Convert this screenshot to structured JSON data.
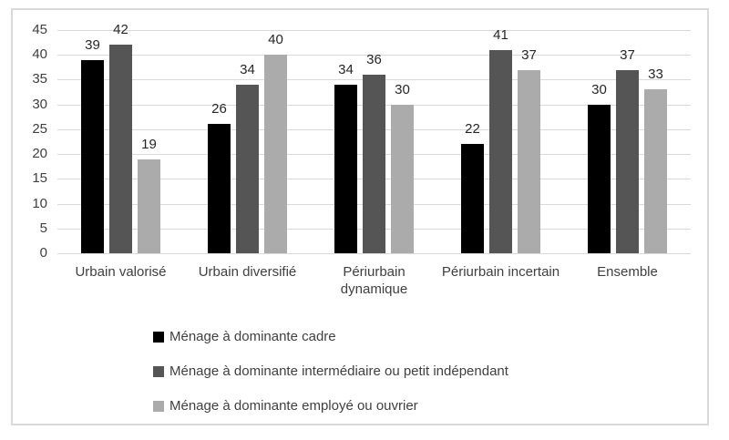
{
  "chart_data": {
    "type": "bar",
    "title": "",
    "xlabel": "",
    "ylabel": "",
    "categories": [
      "Urbain valorisé",
      "Urbain diversifié",
      "Périurbain dynamique",
      "Périurbain incertain",
      "Ensemble"
    ],
    "series": [
      {
        "name": "Ménage à dominante cadre",
        "color": "#000000",
        "values": [
          39,
          26,
          34,
          22,
          30
        ]
      },
      {
        "name": "Ménage à dominante intermédiaire ou petit indépendant",
        "color": "#555555",
        "values": [
          42,
          34,
          36,
          41,
          37
        ]
      },
      {
        "name": "Ménage à dominante employé ou ouvrier",
        "color": "#ababab",
        "values": [
          19,
          40,
          30,
          37,
          33
        ]
      }
    ],
    "ylim": [
      0,
      45
    ],
    "y_ticks": [
      0,
      5,
      10,
      15,
      20,
      25,
      30,
      35,
      40,
      45
    ],
    "grid": true,
    "legend_position": "bottom",
    "value_labels_shown": true
  },
  "colors": {
    "frame_border": "#d9d9d9",
    "gridline": "#d9d9d9",
    "tick_text": "#404040",
    "category_text": "#404040",
    "value_text": "#262626",
    "background": "#ffffff"
  }
}
